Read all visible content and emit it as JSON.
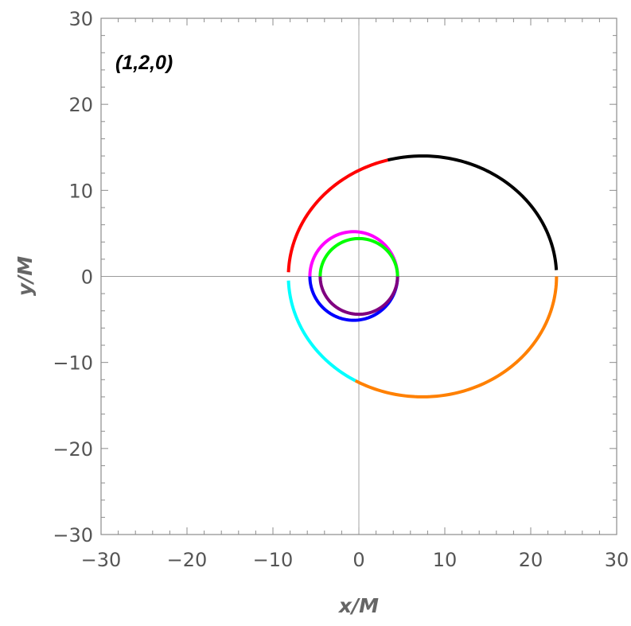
{
  "chart_data": {
    "type": "line",
    "title": "",
    "annotation": "(1,2,0)",
    "xlabel": "x/M",
    "ylabel": "y/M",
    "xlim": [
      -30,
      30
    ],
    "ylim": [
      -30,
      30
    ],
    "x_ticks": [
      -30,
      -20,
      -10,
      0,
      10,
      20,
      30
    ],
    "y_ticks": [
      -30,
      -20,
      -10,
      0,
      10,
      20,
      30
    ],
    "x_tick_labels": [
      "−30",
      "−20",
      "−10",
      "0",
      "10",
      "20",
      "30"
    ],
    "y_tick_labels": [
      "−30",
      "−20",
      "−10",
      "0",
      "10",
      "20",
      "30"
    ],
    "origin_lines": true,
    "grid": false,
    "series": [
      {
        "color": "#000000",
        "ellipse": {
          "cx": 7.4,
          "cy": 0,
          "rx": 15.6,
          "ry": 14.0
        },
        "angle_deg": [
          3,
          105
        ]
      },
      {
        "color": "#ff0000",
        "ellipse": {
          "cx": 7.4,
          "cy": 0,
          "rx": 15.6,
          "ry": 14.0
        },
        "angle_deg": [
          105,
          178
        ]
      },
      {
        "color": "#00ffff",
        "ellipse": {
          "cx": 7.4,
          "cy": 0,
          "rx": 15.6,
          "ry": 14.0
        },
        "angle_deg": [
          182,
          240
        ]
      },
      {
        "color": "#ff8000",
        "ellipse": {
          "cx": 7.4,
          "cy": 0,
          "rx": 15.6,
          "ry": 14.0
        },
        "angle_deg": [
          240,
          360
        ]
      },
      {
        "color": "#ff00ff",
        "ellipse": {
          "cx": -0.6,
          "cy": 0,
          "rx": 5.1,
          "ry": 5.2
        },
        "angle_deg": [
          0,
          180
        ]
      },
      {
        "color": "#0000ff",
        "ellipse": {
          "cx": -0.6,
          "cy": 0,
          "rx": 5.1,
          "ry": 5.1
        },
        "angle_deg": [
          180,
          360
        ]
      },
      {
        "color": "#00ff00",
        "ellipse": {
          "cx": 0,
          "cy": 0,
          "rx": 4.5,
          "ry": 4.4
        },
        "angle_deg": [
          0,
          180
        ]
      },
      {
        "color": "#800080",
        "ellipse": {
          "cx": 0,
          "cy": 0,
          "rx": 4.5,
          "ry": 4.4
        },
        "angle_deg": [
          180,
          360
        ]
      }
    ]
  }
}
